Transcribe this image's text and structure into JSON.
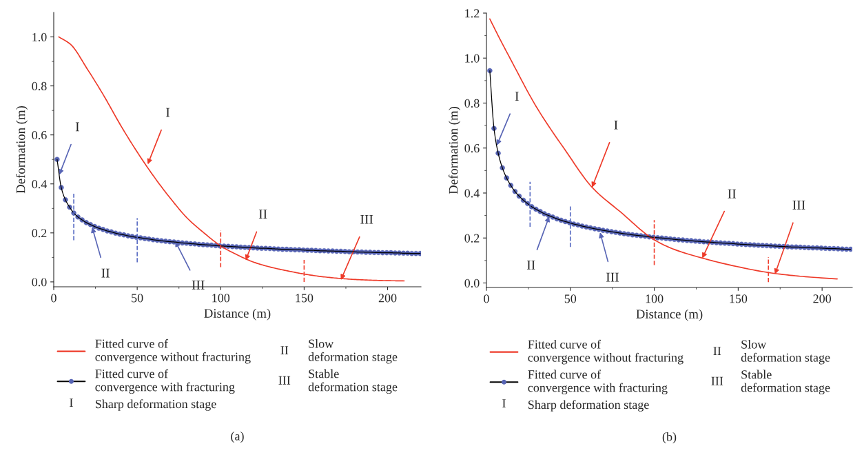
{
  "chart_data": [
    {
      "type": "line",
      "title": "(a)",
      "xlabel": "Distance (m)",
      "ylabel": "Deformation (m)",
      "xlim": [
        0,
        220
      ],
      "ylim": [
        -0.02,
        1.1
      ],
      "xticks": [
        0,
        50,
        100,
        150,
        200
      ],
      "yticks": [
        {
          "value": 0,
          "label": "0.0"
        },
        {
          "value": 0.2,
          "label": "0.2"
        },
        {
          "value": 0.4,
          "label": "0.4"
        },
        {
          "value": 0.6,
          "label": "0.6"
        },
        {
          "value": 0.8,
          "label": "0.8"
        },
        {
          "value": 1.0,
          "label": "1.0"
        }
      ],
      "legend": "bottom",
      "series": [
        {
          "name": "Fitted curve of\nconvergence without fracturing",
          "color": "#ee3b2a",
          "marker": "none",
          "x": [
            3,
            10,
            20,
            30,
            40,
            50,
            60,
            70,
            80,
            90,
            100,
            110,
            120,
            130,
            140,
            150,
            160,
            170,
            180,
            190,
            200,
            210
          ],
          "values": [
            1.0,
            0.97,
            0.87,
            0.76,
            0.64,
            0.53,
            0.43,
            0.34,
            0.26,
            0.2,
            0.147,
            0.11,
            0.08,
            0.06,
            0.045,
            0.032,
            0.022,
            0.015,
            0.01,
            0.007,
            0.005,
            0.004
          ]
        },
        {
          "name": "Fitted curve of\nconvergence with fracturing",
          "color": "#5865b5",
          "marker": "circle",
          "x": [
            2,
            4.5,
            7,
            9.5,
            12,
            14.5,
            17,
            19.5,
            22,
            24.5,
            27,
            29.5,
            32,
            34.5,
            37,
            39.5,
            42,
            44.5,
            47,
            49.5,
            52,
            54.5,
            57,
            59.5,
            62,
            64.5,
            67,
            69.5,
            72,
            74.5,
            77,
            79.5,
            82,
            84.5,
            87,
            89.5,
            92,
            94.5,
            97,
            99.5,
            102,
            104.5,
            107,
            109.5,
            112,
            114.5,
            117,
            119.5,
            122,
            124.5,
            127,
            129.5,
            132,
            134.5,
            137,
            139.5,
            142,
            144.5,
            147,
            149.5,
            152,
            154.5,
            157,
            159.5,
            162,
            164.5,
            167,
            169.5,
            172,
            174.5,
            177,
            179.5,
            182,
            184.5,
            187,
            189.5,
            192,
            194.5,
            197,
            199.5,
            202,
            204.5,
            207,
            209.5,
            212,
            214.5,
            217,
            219.5
          ],
          "values": [
            0.5,
            0.385,
            0.335,
            0.305,
            0.281,
            0.265,
            0.253,
            0.242,
            0.234,
            0.226,
            0.219,
            0.214,
            0.208,
            0.204,
            0.199,
            0.195,
            0.192,
            0.188,
            0.185,
            0.182,
            0.18,
            0.177,
            0.175,
            0.172,
            0.17,
            0.168,
            0.166,
            0.164,
            0.163,
            0.161,
            0.159,
            0.158,
            0.156,
            0.155,
            0.153,
            0.152,
            0.151,
            0.15,
            0.148,
            0.147,
            0.146,
            0.145,
            0.144,
            0.143,
            0.142,
            0.141,
            0.14,
            0.139,
            0.138,
            0.137,
            0.137,
            0.136,
            0.135,
            0.134,
            0.133,
            0.133,
            0.132,
            0.131,
            0.131,
            0.13,
            0.129,
            0.129,
            0.128,
            0.127,
            0.127,
            0.126,
            0.126,
            0.125,
            0.125,
            0.124,
            0.123,
            0.123,
            0.122,
            0.122,
            0.121,
            0.121,
            0.12,
            0.12,
            0.119,
            0.119,
            0.119,
            0.118,
            0.118,
            0.117,
            0.117,
            0.116,
            0.116,
            0.116
          ]
        },
        {
          "type": "line",
          "line_style": "dashed",
          "color": "#5b6ec4",
          "marker": "none",
          "x": [
            12,
            12
          ],
          "values": [
            0.17,
            0.36
          ]
        },
        {
          "type": "line",
          "line_style": "dashed",
          "color": "#5b6ec4",
          "marker": "none",
          "x": [
            50,
            50
          ],
          "values": [
            0.08,
            0.26
          ]
        },
        {
          "type": "line",
          "line_style": "dashed",
          "color": "#f04030",
          "marker": "none",
          "x": [
            100,
            100
          ],
          "values": [
            0.06,
            0.21
          ]
        },
        {
          "type": "line",
          "line_style": "dashed",
          "color": "#f04030",
          "marker": "none",
          "x": [
            150,
            150
          ],
          "values": [
            0.0,
            0.09
          ]
        }
      ],
      "annotations": [
        {
          "text": "I",
          "x": 56.3,
          "y": 0.48
        },
        {
          "text": "I",
          "x": 3.3,
          "y": 0.437
        },
        {
          "text": "II",
          "x": 23,
          "y": 0.223
        },
        {
          "text": "III",
          "x": 72.8,
          "y": 0.166
        },
        {
          "text": "II",
          "x": 115,
          "y": 0.088
        },
        {
          "text": "III",
          "x": 172,
          "y": 0.008
        },
        "I Sharp deformation stage",
        "II Slow\ndeformation stage",
        "III Stable\ndeformation stage"
      ]
    },
    {
      "type": "line",
      "title": "(b)",
      "xlabel": "Distance (m)",
      "ylabel": "Deformation (m)",
      "xlim": [
        0,
        218
      ],
      "ylim": [
        -0.02,
        1.2
      ],
      "xticks": [
        0,
        50,
        100,
        150,
        200
      ],
      "yticks": [
        {
          "value": 0,
          "label": "0.0"
        },
        {
          "value": 0.2,
          "label": "0.2"
        },
        {
          "value": 0.4,
          "label": "0.4"
        },
        {
          "value": 0.6,
          "label": "0.6"
        },
        {
          "value": 0.8,
          "label": "0.8"
        },
        {
          "value": 1.0,
          "label": "1.0"
        },
        {
          "value": 1.2,
          "label": "1.2"
        }
      ],
      "legend": "bottom",
      "series": [
        {
          "name": "Fitted curve of\nconvergence without fracturing",
          "color": "#ee3b2a",
          "marker": "none",
          "x": [
            2,
            8,
            14,
            30,
            47,
            63,
            80,
            100,
            112,
            129,
            145,
            172,
            190,
            209
          ],
          "values": [
            1.174,
            1.085,
            1.0,
            0.78,
            0.59,
            0.425,
            0.315,
            0.192,
            0.149,
            0.11,
            0.08,
            0.042,
            0.028,
            0.018
          ]
        },
        {
          "name": "Fitted curve of\nconvergence with fracturing",
          "color": "#5865b5",
          "marker": "circle",
          "x": [
            2,
            4.5,
            7,
            9.5,
            12,
            14.5,
            17,
            19.5,
            22,
            24.5,
            27,
            29.5,
            32,
            34.5,
            37,
            39.5,
            42,
            44.5,
            47,
            49.5,
            52,
            54.5,
            57,
            59.5,
            62,
            64.5,
            67,
            69.5,
            72,
            74.5,
            77,
            79.5,
            82,
            84.5,
            87,
            89.5,
            92,
            94.5,
            97,
            99.5,
            102,
            104.5,
            107,
            109.5,
            112,
            114.5,
            117,
            119.5,
            122,
            124.5,
            127,
            129.5,
            132,
            134.5,
            137,
            139.5,
            142,
            144.5,
            147,
            149.5,
            152,
            154.5,
            157,
            159.5,
            162,
            164.5,
            167,
            169.5,
            172,
            174.5,
            177,
            179.5,
            182,
            184.5,
            187,
            189.5,
            192,
            194.5,
            197,
            199.5,
            202,
            204.5,
            207,
            209.5,
            212,
            214.5,
            217
          ],
          "values": [
            0.944,
            0.687,
            0.577,
            0.512,
            0.467,
            0.434,
            0.407,
            0.386,
            0.368,
            0.353,
            0.339,
            0.328,
            0.318,
            0.308,
            0.3,
            0.293,
            0.285,
            0.279,
            0.273,
            0.268,
            0.262,
            0.258,
            0.253,
            0.249,
            0.245,
            0.241,
            0.238,
            0.234,
            0.231,
            0.228,
            0.225,
            0.222,
            0.219,
            0.217,
            0.214,
            0.212,
            0.21,
            0.208,
            0.205,
            0.203,
            0.201,
            0.2,
            0.198,
            0.196,
            0.194,
            0.192,
            0.191,
            0.189,
            0.188,
            0.186,
            0.185,
            0.183,
            0.182,
            0.181,
            0.179,
            0.178,
            0.177,
            0.176,
            0.175,
            0.173,
            0.172,
            0.171,
            0.17,
            0.169,
            0.168,
            0.167,
            0.166,
            0.165,
            0.164,
            0.163,
            0.162,
            0.161,
            0.16,
            0.16,
            0.159,
            0.158,
            0.157,
            0.156,
            0.156,
            0.155,
            0.154,
            0.153,
            0.153,
            0.152,
            0.151,
            0.15,
            0.15
          ]
        },
        {
          "type": "line",
          "line_style": "dashed",
          "color": "#5b6ec4",
          "marker": "none",
          "x": [
            26,
            26
          ],
          "values": [
            0.25,
            0.45
          ]
        },
        {
          "type": "line",
          "line_style": "dashed",
          "color": "#5b6ec4",
          "marker": "none",
          "x": [
            50,
            50
          ],
          "values": [
            0.16,
            0.34
          ]
        },
        {
          "type": "line",
          "line_style": "dashed",
          "color": "#f04030",
          "marker": "none",
          "x": [
            100,
            100
          ],
          "values": [
            0.08,
            0.28
          ]
        },
        {
          "type": "line",
          "line_style": "dashed",
          "color": "#f04030",
          "marker": "none",
          "x": [
            168,
            168
          ],
          "values": [
            0.004,
            0.115
          ]
        }
      ],
      "annotations": [
        {
          "text": "I",
          "x": 62.9,
          "y": 0.425
        },
        {
          "text": "I",
          "x": 6.2,
          "y": 0.612
        },
        {
          "text": "II",
          "x": 37.4,
          "y": 0.296
        },
        {
          "text": "III",
          "x": 67.7,
          "y": 0.225
        },
        {
          "text": "II",
          "x": 128.6,
          "y": 0.11
        },
        {
          "text": "III",
          "x": 171.9,
          "y": 0.039
        },
        "I Sharp deformation stage",
        "II Slow\ndeformation stage",
        "III Stable\ndeformation stage"
      ]
    }
  ]
}
